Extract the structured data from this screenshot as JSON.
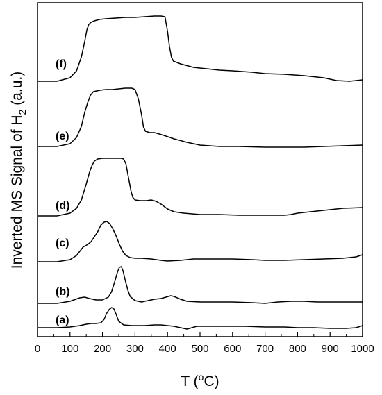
{
  "chart_data": {
    "type": "line",
    "xlabel_main": "T (",
    "xlabel_sup": "o",
    "xlabel_end": "C)",
    "ylabel_main": "Inverted MS Signal of H",
    "ylabel_sub": "2",
    "ylabel_end": " (a.u.)",
    "xlim": [
      0,
      1000
    ],
    "x_ticks": [
      0,
      100,
      200,
      300,
      400,
      500,
      600,
      700,
      800,
      900,
      1000
    ],
    "y_ticks_shown": false,
    "grid": false,
    "series": [
      {
        "name": "(a)",
        "points": [
          [
            0,
            472
          ],
          [
            60,
            472
          ],
          [
            100,
            471
          ],
          [
            130,
            469
          ],
          [
            150,
            467
          ],
          [
            165,
            466
          ],
          [
            180,
            466
          ],
          [
            195,
            465
          ],
          [
            205,
            460
          ],
          [
            212,
            452
          ],
          [
            220,
            446
          ],
          [
            228,
            443
          ],
          [
            235,
            445
          ],
          [
            242,
            453
          ],
          [
            250,
            463
          ],
          [
            265,
            468
          ],
          [
            290,
            469
          ],
          [
            330,
            469
          ],
          [
            360,
            468
          ],
          [
            380,
            468
          ],
          [
            400,
            469
          ],
          [
            420,
            470
          ],
          [
            440,
            472
          ],
          [
            460,
            474
          ],
          [
            475,
            472
          ],
          [
            490,
            470
          ],
          [
            520,
            470
          ],
          [
            560,
            470
          ],
          [
            600,
            470
          ],
          [
            640,
            470
          ],
          [
            700,
            471
          ],
          [
            760,
            471
          ],
          [
            800,
            472
          ],
          [
            850,
            472
          ],
          [
            900,
            473
          ],
          [
            950,
            473
          ],
          [
            980,
            472
          ],
          [
            1000,
            469
          ]
        ]
      },
      {
        "name": "(b)",
        "points": [
          [
            0,
            437
          ],
          [
            60,
            437
          ],
          [
            100,
            434
          ],
          [
            130,
            429
          ],
          [
            145,
            428
          ],
          [
            160,
            430
          ],
          [
            180,
            432
          ],
          [
            200,
            432
          ],
          [
            218,
            428
          ],
          [
            228,
            420
          ],
          [
            238,
            405
          ],
          [
            246,
            392
          ],
          [
            252,
            385
          ],
          [
            258,
            384
          ],
          [
            263,
            390
          ],
          [
            270,
            404
          ],
          [
            278,
            418
          ],
          [
            285,
            427
          ],
          [
            300,
            433
          ],
          [
            320,
            435
          ],
          [
            340,
            433
          ],
          [
            360,
            431
          ],
          [
            380,
            430
          ],
          [
            395,
            428
          ],
          [
            410,
            426
          ],
          [
            420,
            427
          ],
          [
            440,
            431
          ],
          [
            460,
            434
          ],
          [
            500,
            435
          ],
          [
            540,
            435
          ],
          [
            600,
            435
          ],
          [
            660,
            436
          ],
          [
            700,
            437
          ],
          [
            740,
            435
          ],
          [
            780,
            434
          ],
          [
            820,
            434
          ],
          [
            860,
            435
          ],
          [
            900,
            435
          ],
          [
            960,
            435
          ],
          [
            1000,
            435
          ]
        ]
      },
      {
        "name": "(c)",
        "points": [
          [
            0,
            377
          ],
          [
            60,
            377
          ],
          [
            100,
            374
          ],
          [
            120,
            368
          ],
          [
            140,
            356
          ],
          [
            155,
            352
          ],
          [
            165,
            348
          ],
          [
            175,
            341
          ],
          [
            185,
            334
          ],
          [
            195,
            324
          ],
          [
            205,
            320
          ],
          [
            213,
            319
          ],
          [
            222,
            322
          ],
          [
            232,
            330
          ],
          [
            242,
            340
          ],
          [
            252,
            352
          ],
          [
            262,
            362
          ],
          [
            272,
            368
          ],
          [
            285,
            371
          ],
          [
            300,
            372
          ],
          [
            320,
            372
          ],
          [
            350,
            373
          ],
          [
            380,
            375
          ],
          [
            400,
            376
          ],
          [
            440,
            375
          ],
          [
            480,
            373
          ],
          [
            520,
            373
          ],
          [
            560,
            373
          ],
          [
            600,
            373
          ],
          [
            660,
            374
          ],
          [
            700,
            375
          ],
          [
            760,
            375
          ],
          [
            820,
            374
          ],
          [
            880,
            373
          ],
          [
            940,
            372
          ],
          [
            980,
            370
          ],
          [
            1000,
            367
          ]
        ]
      },
      {
        "name": "(d)",
        "points": [
          [
            0,
            311
          ],
          [
            60,
            311
          ],
          [
            100,
            307
          ],
          [
            120,
            300
          ],
          [
            135,
            288
          ],
          [
            150,
            265
          ],
          [
            160,
            248
          ],
          [
            168,
            238
          ],
          [
            175,
            232
          ],
          [
            185,
            229
          ],
          [
            200,
            228
          ],
          [
            215,
            228
          ],
          [
            230,
            228
          ],
          [
            245,
            228
          ],
          [
            258,
            228
          ],
          [
            265,
            229
          ],
          [
            272,
            236
          ],
          [
            280,
            256
          ],
          [
            288,
            276
          ],
          [
            293,
            284
          ],
          [
            300,
            288
          ],
          [
            315,
            289
          ],
          [
            335,
            289
          ],
          [
            350,
            288
          ],
          [
            365,
            290
          ],
          [
            380,
            294
          ],
          [
            400,
            301
          ],
          [
            420,
            305
          ],
          [
            450,
            307
          ],
          [
            500,
            309
          ],
          [
            560,
            309
          ],
          [
            620,
            310
          ],
          [
            700,
            310
          ],
          [
            760,
            310
          ],
          [
            780,
            309
          ],
          [
            800,
            307
          ],
          [
            840,
            305
          ],
          [
            880,
            303
          ],
          [
            940,
            300
          ],
          [
            1000,
            299
          ]
        ]
      },
      {
        "name": "(e)",
        "points": [
          [
            0,
            211
          ],
          [
            60,
            211
          ],
          [
            100,
            207
          ],
          [
            120,
            198
          ],
          [
            135,
            182
          ],
          [
            145,
            162
          ],
          [
            155,
            147
          ],
          [
            163,
            137
          ],
          [
            172,
            132
          ],
          [
            182,
            131
          ],
          [
            192,
            130
          ],
          [
            210,
            129
          ],
          [
            230,
            129
          ],
          [
            250,
            128
          ],
          [
            270,
            127
          ],
          [
            290,
            127
          ],
          [
            300,
            129
          ],
          [
            310,
            142
          ],
          [
            320,
            165
          ],
          [
            326,
            183
          ],
          [
            332,
            189
          ],
          [
            345,
            191
          ],
          [
            360,
            191
          ],
          [
            375,
            193
          ],
          [
            395,
            196
          ],
          [
            420,
            200
          ],
          [
            460,
            205
          ],
          [
            500,
            209
          ],
          [
            560,
            211
          ],
          [
            620,
            211
          ],
          [
            700,
            212
          ],
          [
            760,
            212
          ],
          [
            820,
            212
          ],
          [
            880,
            211
          ],
          [
            940,
            210
          ],
          [
            1000,
            209
          ]
        ]
      },
      {
        "name": "(f)",
        "points": [
          [
            0,
            117
          ],
          [
            60,
            117
          ],
          [
            100,
            112
          ],
          [
            120,
            102
          ],
          [
            135,
            82
          ],
          [
            145,
            60
          ],
          [
            152,
            43
          ],
          [
            158,
            35
          ],
          [
            165,
            32
          ],
          [
            175,
            30
          ],
          [
            190,
            28
          ],
          [
            210,
            27
          ],
          [
            240,
            26
          ],
          [
            270,
            25
          ],
          [
            300,
            25
          ],
          [
            330,
            24
          ],
          [
            360,
            23
          ],
          [
            380,
            23
          ],
          [
            392,
            24
          ],
          [
            400,
            45
          ],
          [
            406,
            67
          ],
          [
            412,
            82
          ],
          [
            418,
            88
          ],
          [
            440,
            92
          ],
          [
            480,
            97
          ],
          [
            520,
            99
          ],
          [
            560,
            101
          ],
          [
            600,
            102
          ],
          [
            660,
            104
          ],
          [
            700,
            106
          ],
          [
            760,
            107
          ],
          [
            820,
            109
          ],
          [
            880,
            112
          ],
          [
            920,
            116
          ],
          [
            960,
            117
          ],
          [
            1000,
            115
          ]
        ]
      }
    ]
  }
}
